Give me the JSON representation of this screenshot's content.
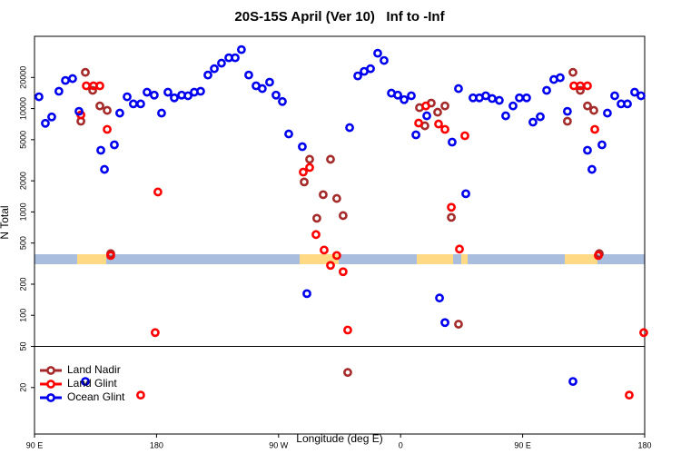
{
  "chart_data": {
    "type": "scatter",
    "title": "20S-15S April (Ver 10)   Inf to -Inf",
    "x_label": "Longitude (deg E)",
    "y_label": "N Total",
    "log_y": true,
    "legend": "bottom-left",
    "xlim": [
      90,
      540
    ],
    "xticks": [
      {
        "value": 90,
        "label": "90 E"
      },
      180,
      {
        "value": 270,
        "label": "90 W"
      },
      {
        "value": 360,
        "label": "0"
      },
      {
        "value": 450,
        "label": "90 E"
      },
      {
        "value": 540,
        "label": "180"
      }
    ],
    "ylim": [
      7.1,
      50000
    ],
    "yticks": [
      20,
      50,
      100,
      200,
      500,
      1000,
      2000,
      5000,
      10000,
      20000
    ],
    "series": [
      {
        "name": "Land Nadir",
        "color": "#a52a2a",
        "x": [
          127.5,
          124.2,
          132.9,
          138.2,
          143.6,
          146.2,
          288.9,
          292.9,
          298.2,
          302.9,
          308.3,
          312.9,
          317.6,
          321,
          373.9,
          377.9,
          382.6,
          387.3,
          392.7,
          397.4,
          402.7,
          487.1,
          483,
          492.5,
          497.8,
          502.5,
          506.5
        ],
        "values": [
          22400,
          7540,
          15000,
          10600,
          9600,
          395,
          1950,
          3230,
          868,
          1470,
          3230,
          1350,
          922,
          28,
          10200,
          6810,
          11300,
          9220,
          10600,
          886,
          82,
          22400,
          7540,
          15000,
          10600,
          9600,
          395
        ]
      },
      {
        "name": "Land Glint",
        "color": "#ff0000",
        "x": [
          124.2,
          128.2,
          133.5,
          138.2,
          143.6,
          146.2,
          168.3,
          179,
          181,
          288.2,
          292.9,
          297.6,
          303.6,
          308.3,
          312.9,
          317.6,
          321,
          373.3,
          378.6,
          388,
          392.7,
          397.4,
          403.4,
          407.4,
          487.8,
          492.5,
          497.8,
          503.2,
          505.8,
          528.6,
          539.3
        ],
        "values": [
          8690,
          16600,
          16600,
          16600,
          6290,
          379,
          16.9,
          68,
          1560,
          2430,
          2690,
          604,
          428,
          304,
          379,
          264,
          72,
          7240,
          10600,
          7090,
          6290,
          1110,
          437,
          5460,
          16600,
          16600,
          16600,
          6290,
          379,
          16.9,
          68
        ]
      },
      {
        "name": "Ocean Glint",
        "color": "#0000ee",
        "x": [
          93.3,
          98,
          102.7,
          108,
          112.8,
          118.1,
          122.8,
          138.9,
          141.6,
          148.9,
          152.9,
          158.3,
          162.9,
          168.3,
          173,
          178.3,
          183.7,
          188.4,
          193.1,
          198.5,
          203.2,
          207.8,
          212.5,
          217.9,
          222.6,
          227.9,
          233.3,
          238,
          242.6,
          248,
          253.4,
          258,
          263.4,
          268.1,
          272.8,
          277.5,
          287.5,
          290.9,
          322.4,
          328.4,
          333.1,
          337.8,
          343.1,
          347.8,
          353.2,
          357.9,
          362.6,
          367.9,
          371.3,
          379.3,
          388.7,
          392.7,
          398,
          402.7,
          408.1,
          413.4,
          418.1,
          422.8,
          427.5,
          432.8,
          437.5,
          442.9,
          447.6,
          452.9,
          457.6,
          463,
          467.7,
          473,
          477.7,
          483,
          487.1,
          497.8,
          501.1,
          508.5,
          512.5,
          517.9,
          522.6,
          527.3,
          532.6,
          537.3,
          127.5
        ],
        "values": [
          13000,
          7200,
          8300,
          14700,
          18700,
          19500,
          9400,
          3950,
          2580,
          4460,
          9040,
          13000,
          11100,
          11100,
          14400,
          13500,
          9040,
          14400,
          12700,
          13500,
          13300,
          14400,
          14700,
          21100,
          24300,
          27500,
          31000,
          31000,
          37200,
          21100,
          16600,
          15600,
          18000,
          13500,
          11700,
          5680,
          4280,
          162,
          6540,
          20700,
          22900,
          24300,
          34300,
          29200,
          14100,
          13500,
          12200,
          13300,
          5570,
          8510,
          147,
          85,
          4740,
          15600,
          1500,
          12700,
          12700,
          13300,
          12500,
          12000,
          8510,
          10600,
          12700,
          12700,
          7390,
          8340,
          15000,
          19100,
          19900,
          9400,
          22.9,
          3950,
          2580,
          4460,
          9040,
          13300,
          11100,
          11100,
          14400,
          13300,
          22.9
        ]
      }
    ]
  }
}
